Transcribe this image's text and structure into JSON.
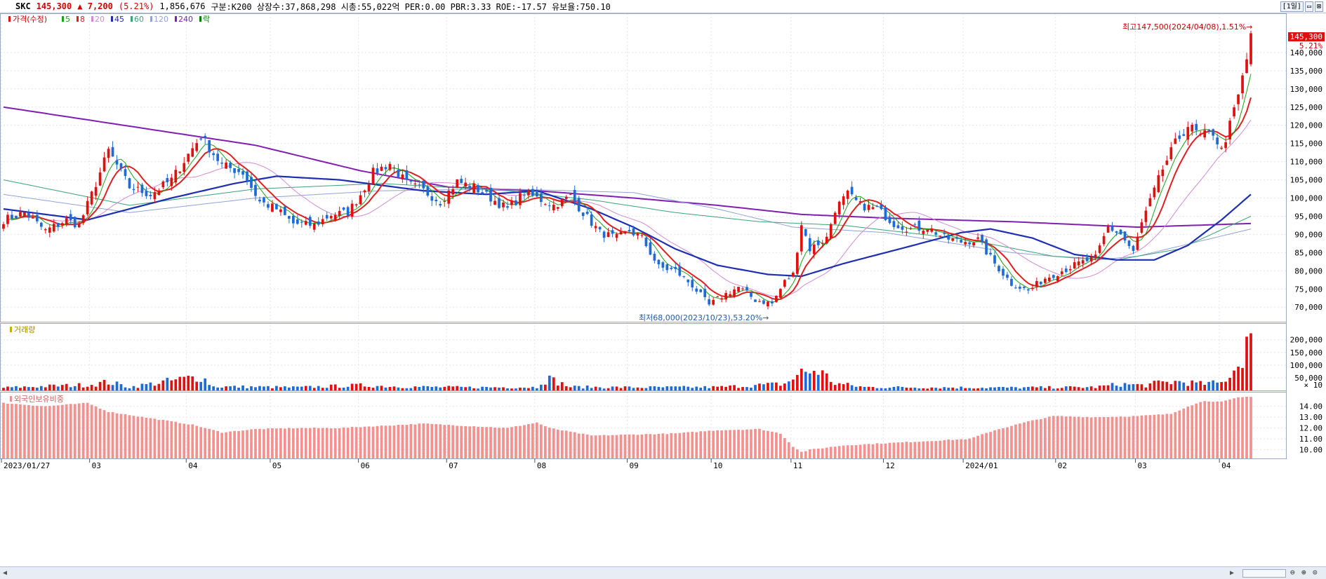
{
  "header": {
    "name": "SKC",
    "price": "145,300",
    "change": "▲ 7,200",
    "rate": "(5.21%)",
    "volume": "1,856,676",
    "info": "구분:K200  상장수:37,868,298  시총:55,022억  PER:0.00  PBR:3.33  ROE:-17.57  유보율:750.10",
    "period": "[1일]",
    "min_btn": "▭",
    "close_btn": "⊠"
  },
  "legend": {
    "price": "가격(수정)",
    "ma": [
      {
        "label": "5",
        "color": "#19a319"
      },
      {
        "label": "8",
        "color": "#e0201f"
      },
      {
        "label": "20",
        "color": "#d38bd3"
      },
      {
        "label": "45",
        "color": "#1d2fb0"
      },
      {
        "label": "60",
        "color": "#3aa37a"
      },
      {
        "label": "120",
        "color": "#8fa3d6"
      },
      {
        "label": "240",
        "color": "#8020b0"
      }
    ],
    "extra": "락"
  },
  "colors": {
    "up": "#e01010",
    "down": "#1e6ad6",
    "foreign": "#f4908e",
    "accent": "#c40000"
  },
  "annotations": {
    "high": "최고147,500(2024/04/08),1.51%→",
    "low": "최저68,000(2023/10/23),53.20%→",
    "last_price": "145,300",
    "last_rate": "5.21%"
  },
  "volume_panel": {
    "title": "거래량",
    "unit": "× 10"
  },
  "foreign_panel": {
    "title": "외국인보유비중"
  },
  "chart_data": {
    "type": "candlestick",
    "price_axis": {
      "min": 66000,
      "max": 150000,
      "ticks": [
        70000,
        75000,
        80000,
        85000,
        90000,
        95000,
        100000,
        105000,
        110000,
        115000,
        120000,
        125000,
        130000,
        135000,
        140000
      ]
    },
    "volume_axis": {
      "min": 0,
      "max": 260000,
      "ticks": [
        50000,
        100000,
        150000,
        200000
      ]
    },
    "foreign_axis": {
      "min": 9.2,
      "max": 15.2,
      "ticks": [
        10,
        11,
        12,
        13,
        14
      ]
    },
    "x_labels": [
      {
        "label": "2023/01/27",
        "index": 0
      },
      {
        "label": "03",
        "index": 21
      },
      {
        "label": "04",
        "index": 44
      },
      {
        "label": "05",
        "index": 64
      },
      {
        "label": "06",
        "index": 85
      },
      {
        "label": "07",
        "index": 106
      },
      {
        "label": "08",
        "index": 127
      },
      {
        "label": "09",
        "index": 149
      },
      {
        "label": "10",
        "index": 169
      },
      {
        "label": "11",
        "index": 188
      },
      {
        "label": "12",
        "index": 210
      },
      {
        "label": "2024/01",
        "index": 229
      },
      {
        "label": "02",
        "index": 251
      },
      {
        "label": "03",
        "index": 270
      },
      {
        "label": "04",
        "index": 290
      }
    ],
    "price_keypoints": [
      [
        0,
        94000
      ],
      [
        5,
        96000
      ],
      [
        10,
        91000
      ],
      [
        15,
        94000
      ],
      [
        18,
        92500
      ],
      [
        21,
        101000
      ],
      [
        25,
        113000
      ],
      [
        30,
        103000
      ],
      [
        35,
        101000
      ],
      [
        40,
        105000
      ],
      [
        44,
        112000
      ],
      [
        47,
        117000
      ],
      [
        52,
        109000
      ],
      [
        57,
        107000
      ],
      [
        61,
        99000
      ],
      [
        65,
        97000
      ],
      [
        69,
        93000
      ],
      [
        74,
        92500
      ],
      [
        78,
        95500
      ],
      [
        82,
        96000
      ],
      [
        85,
        101000
      ],
      [
        88,
        107000
      ],
      [
        92,
        109500
      ],
      [
        96,
        104000
      ],
      [
        100,
        102000
      ],
      [
        104,
        99000
      ],
      [
        108,
        104500
      ],
      [
        112,
        103000
      ],
      [
        116,
        100000
      ],
      [
        120,
        97000
      ],
      [
        124,
        101500
      ],
      [
        127,
        100000
      ],
      [
        131,
        98000
      ],
      [
        135,
        100500
      ],
      [
        138,
        96000
      ],
      [
        142,
        90500
      ],
      [
        146,
        89000
      ],
      [
        149,
        91000
      ],
      [
        152,
        89000
      ],
      [
        156,
        81000
      ],
      [
        160,
        80000
      ],
      [
        164,
        76000
      ],
      [
        168,
        70500
      ],
      [
        171,
        73000
      ],
      [
        175,
        75500
      ],
      [
        179,
        72000
      ],
      [
        183,
        71000
      ],
      [
        186,
        77000
      ],
      [
        188,
        79000
      ],
      [
        190,
        93000
      ],
      [
        192,
        86000
      ],
      [
        196,
        89000
      ],
      [
        198,
        97000
      ],
      [
        201,
        101000
      ],
      [
        204,
        98000
      ],
      [
        208,
        97000
      ],
      [
        212,
        93000
      ],
      [
        216,
        91500
      ],
      [
        220,
        92000
      ],
      [
        224,
        89000
      ],
      [
        228,
        88000
      ],
      [
        232,
        88500
      ],
      [
        236,
        82000
      ],
      [
        240,
        76500
      ],
      [
        244,
        74500
      ],
      [
        248,
        78000
      ],
      [
        252,
        80000
      ],
      [
        256,
        82000
      ],
      [
        260,
        83500
      ],
      [
        263,
        92000
      ],
      [
        266,
        90000
      ],
      [
        269,
        85000
      ],
      [
        271,
        93000
      ],
      [
        273,
        99000
      ],
      [
        276,
        108000
      ],
      [
        279,
        115000
      ],
      [
        282,
        120000
      ],
      [
        285,
        117000
      ],
      [
        288,
        118000
      ],
      [
        290,
        113000
      ],
      [
        292,
        120000
      ],
      [
        294,
        128000
      ],
      [
        296,
        138000
      ],
      [
        297,
        145300
      ]
    ],
    "volume_keypoints": [
      [
        0,
        11000
      ],
      [
        20,
        22000
      ],
      [
        25,
        33000
      ],
      [
        30,
        13000
      ],
      [
        44,
        48000
      ],
      [
        47,
        57000
      ],
      [
        50,
        15000
      ],
      [
        60,
        14000
      ],
      [
        70,
        12000
      ],
      [
        85,
        20000
      ],
      [
        95,
        15000
      ],
      [
        110,
        12000
      ],
      [
        127,
        13000
      ],
      [
        128,
        38000
      ],
      [
        130,
        45000
      ],
      [
        135,
        14000
      ],
      [
        150,
        12000
      ],
      [
        170,
        13000
      ],
      [
        186,
        26000
      ],
      [
        190,
        70000
      ],
      [
        194,
        80000
      ],
      [
        198,
        28000
      ],
      [
        205,
        13000
      ],
      [
        220,
        12000
      ],
      [
        240,
        11000
      ],
      [
        260,
        13000
      ],
      [
        266,
        25000
      ],
      [
        272,
        20000
      ],
      [
        275,
        30000
      ],
      [
        280,
        35000
      ],
      [
        285,
        26000
      ],
      [
        290,
        30000
      ],
      [
        294,
        100000
      ],
      [
        296,
        200000
      ],
      [
        297,
        180000
      ]
    ],
    "foreign_keypoints": [
      [
        0,
        14.3
      ],
      [
        10,
        14.0
      ],
      [
        20,
        14.3
      ],
      [
        25,
        13.5
      ],
      [
        35,
        12.9
      ],
      [
        45,
        12.3
      ],
      [
        52,
        11.6
      ],
      [
        60,
        11.9
      ],
      [
        70,
        12.0
      ],
      [
        80,
        12.0
      ],
      [
        90,
        12.2
      ],
      [
        100,
        12.4
      ],
      [
        110,
        12.2
      ],
      [
        120,
        12.0
      ],
      [
        127,
        12.5
      ],
      [
        130,
        12.0
      ],
      [
        140,
        11.3
      ],
      [
        150,
        11.4
      ],
      [
        160,
        11.5
      ],
      [
        170,
        11.8
      ],
      [
        180,
        11.9
      ],
      [
        185,
        11.5
      ],
      [
        188,
        10.3
      ],
      [
        190,
        9.8
      ],
      [
        192,
        10.0
      ],
      [
        200,
        10.4
      ],
      [
        210,
        10.6
      ],
      [
        220,
        10.8
      ],
      [
        230,
        11.0
      ],
      [
        236,
        11.8
      ],
      [
        244,
        12.6
      ],
      [
        250,
        13.1
      ],
      [
        260,
        13.0
      ],
      [
        270,
        13.1
      ],
      [
        278,
        13.3
      ],
      [
        282,
        14.0
      ],
      [
        286,
        14.5
      ],
      [
        290,
        14.4
      ],
      [
        294,
        14.8
      ],
      [
        297,
        14.9
      ]
    ],
    "ma240_keypoints": [
      [
        0,
        125000
      ],
      [
        40,
        118000
      ],
      [
        60,
        114500
      ],
      [
        85,
        107500
      ],
      [
        106,
        103000
      ],
      [
        127,
        102000
      ],
      [
        150,
        100000
      ],
      [
        170,
        98000
      ],
      [
        190,
        95500
      ],
      [
        210,
        94500
      ],
      [
        240,
        93500
      ],
      [
        270,
        92000
      ],
      [
        297,
        93000
      ]
    ],
    "ma120_keypoints": [
      [
        0,
        101000
      ],
      [
        30,
        96000
      ],
      [
        60,
        100000
      ],
      [
        90,
        102000
      ],
      [
        120,
        102500
      ],
      [
        150,
        101500
      ],
      [
        170,
        97000
      ],
      [
        188,
        92000
      ],
      [
        210,
        90500
      ],
      [
        240,
        85000
      ],
      [
        260,
        83000
      ],
      [
        270,
        84000
      ],
      [
        297,
        91500
      ]
    ],
    "ma60_keypoints": [
      [
        0,
        105000
      ],
      [
        30,
        98000
      ],
      [
        60,
        102500
      ],
      [
        90,
        104000
      ],
      [
        120,
        102000
      ],
      [
        140,
        99500
      ],
      [
        160,
        96000
      ],
      [
        180,
        93500
      ],
      [
        200,
        92500
      ],
      [
        230,
        88500
      ],
      [
        250,
        84000
      ],
      [
        265,
        83000
      ],
      [
        280,
        86000
      ],
      [
        297,
        95000
      ]
    ],
    "ma45_keypoints": [
      [
        0,
        97000
      ],
      [
        20,
        94000
      ],
      [
        40,
        100000
      ],
      [
        55,
        104000
      ],
      [
        65,
        106000
      ],
      [
        80,
        105000
      ],
      [
        100,
        102000
      ],
      [
        115,
        101000
      ],
      [
        127,
        102000
      ],
      [
        140,
        97000
      ],
      [
        150,
        92000
      ],
      [
        160,
        86000
      ],
      [
        170,
        81500
      ],
      [
        182,
        79000
      ],
      [
        190,
        78500
      ],
      [
        200,
        82000
      ],
      [
        215,
        86500
      ],
      [
        228,
        90500
      ],
      [
        235,
        91500
      ],
      [
        245,
        89000
      ],
      [
        255,
        84500
      ],
      [
        265,
        83000
      ],
      [
        274,
        83000
      ],
      [
        282,
        87000
      ],
      [
        290,
        94000
      ],
      [
        297,
        101000
      ]
    ]
  }
}
